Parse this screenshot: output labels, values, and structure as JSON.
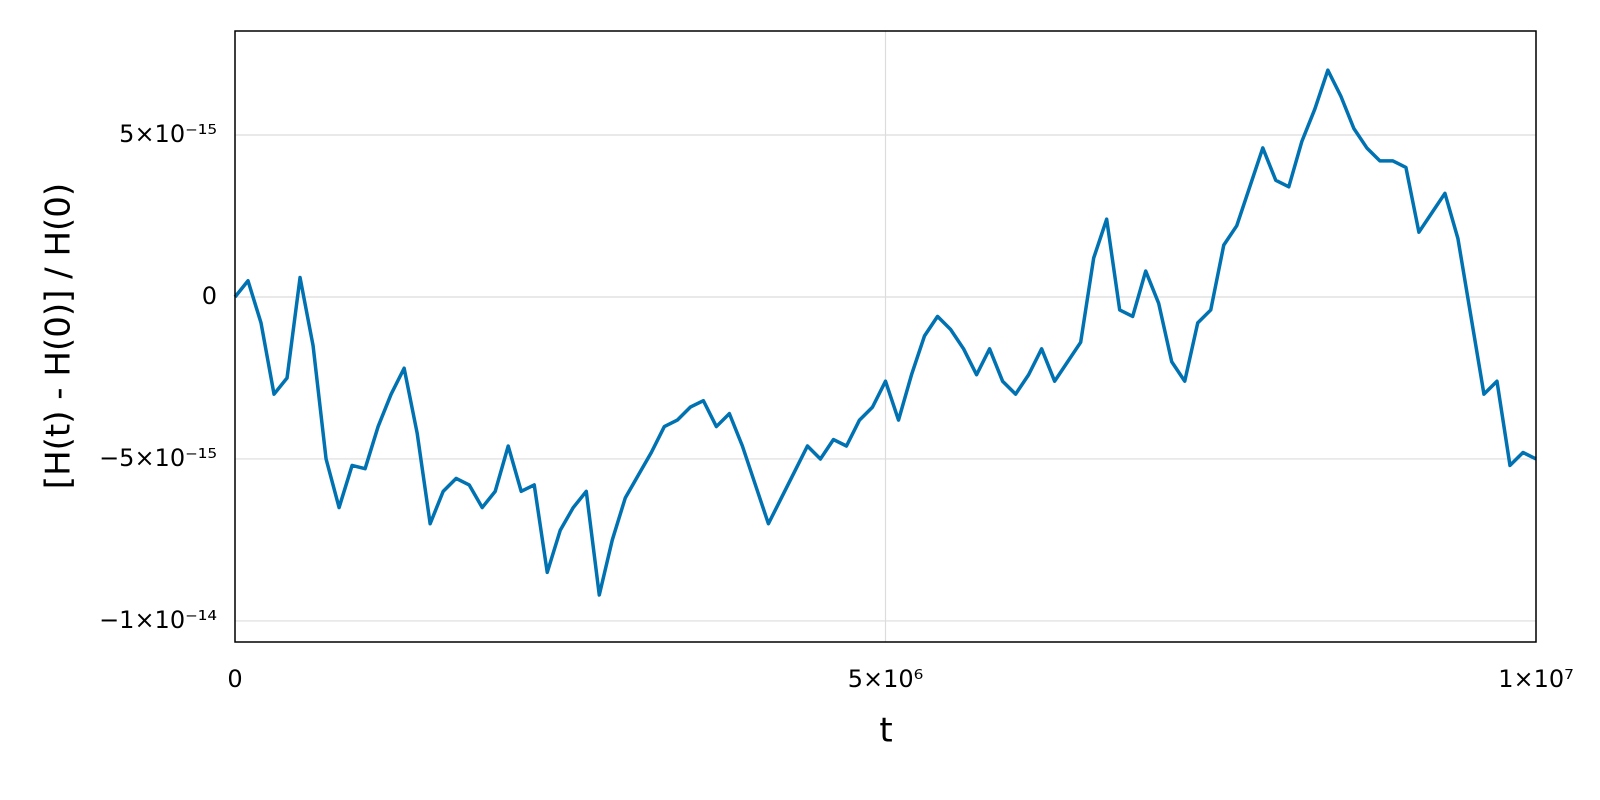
{
  "chart_data": {
    "type": "line",
    "xlabel": "t",
    "ylabel": "[H(t) - H(0)] / H(0)",
    "x": [
      0,
      100000,
      200000,
      300000,
      400000,
      500000,
      600000,
      700000,
      800000,
      900000,
      1000000,
      1100000,
      1200000,
      1300000,
      1400000,
      1500000,
      1600000,
      1700000,
      1800000,
      1900000,
      2000000,
      2100000,
      2200000,
      2300000,
      2400000,
      2500000,
      2600000,
      2700000,
      2800000,
      2900000,
      3000000,
      3100000,
      3200000,
      3300000,
      3400000,
      3500000,
      3600000,
      3700000,
      3800000,
      3900000,
      4000000,
      4100000,
      4200000,
      4300000,
      4400000,
      4500000,
      4600000,
      4700000,
      4800000,
      4900000,
      5000000,
      5100000,
      5200000,
      5300000,
      5400000,
      5500000,
      5600000,
      5700000,
      5800000,
      5900000,
      6000000,
      6100000,
      6200000,
      6300000,
      6400000,
      6500000,
      6600000,
      6700000,
      6800000,
      6900000,
      7000000,
      7100000,
      7200000,
      7300000,
      7400000,
      7500000,
      7600000,
      7700000,
      7800000,
      7900000,
      8000000,
      8100000,
      8200000,
      8300000,
      8400000,
      8500000,
      8600000,
      8700000,
      8800000,
      8900000,
      9000000,
      9100000,
      9200000,
      9300000,
      9400000,
      9500000,
      9600000,
      9700000,
      9800000,
      9900000,
      10000000
    ],
    "series": [
      {
        "color": "#0072b2",
        "values": [
          0,
          5e-16,
          -8e-16,
          -3e-15,
          -2.5e-15,
          6e-16,
          -1.5e-15,
          -5e-15,
          -6.5e-15,
          -5.2e-15,
          -5.3e-15,
          -4e-15,
          -3e-15,
          -2.2e-15,
          -4.2e-15,
          -7e-15,
          -6e-15,
          -5.6e-15,
          -5.8e-15,
          -6.5e-15,
          -6e-15,
          -4.6e-15,
          -6e-15,
          -5.8e-15,
          -8.5e-15,
          -7.2e-15,
          -6.5e-15,
          -6e-15,
          -9.2e-15,
          -7.5e-15,
          -6.2e-15,
          -5.5e-15,
          -4.8e-15,
          -4e-15,
          -3.8e-15,
          -3.4e-15,
          -3.2e-15,
          -4e-15,
          -3.6e-15,
          -4.6e-15,
          -5.8e-15,
          -7e-15,
          -6.2e-15,
          -5.4e-15,
          -4.6e-15,
          -5e-15,
          -4.4e-15,
          -4.6e-15,
          -3.8e-15,
          -3.4e-15,
          -2.6e-15,
          -3.8e-15,
          -2.4e-15,
          -1.2e-15,
          -6e-16,
          -1e-15,
          -1.6e-15,
          -2.4e-15,
          -1.6e-15,
          -2.6e-15,
          -3e-15,
          -2.4e-15,
          -1.6e-15,
          -2.6e-15,
          -2e-15,
          -1.4e-15,
          1.2e-15,
          2.4e-15,
          -4e-16,
          -6e-16,
          8e-16,
          -2e-16,
          -2e-15,
          -2.6e-15,
          -8e-16,
          -4e-16,
          1.6e-15,
          2.2e-15,
          3.4e-15,
          4.6e-15,
          3.6e-15,
          3.4e-15,
          4.8e-15,
          5.8e-15,
          7e-15,
          6.2e-15,
          5.2e-15,
          4.6e-15,
          4.2e-15,
          4.2e-15,
          4e-15,
          2e-15,
          2.6e-15,
          3.2e-15,
          1.8e-15,
          -6e-16,
          -3e-15,
          -2.6e-15,
          -5.2e-15,
          -4.8e-15,
          -5e-15
        ]
      }
    ],
    "xlim": [
      0,
      10000000
    ],
    "ylim": [
      -1.065e-14,
      8.21e-15
    ],
    "xticks": [
      0,
      {
        "value": 5000000,
        "label": "5×10⁶"
      },
      {
        "value": 10000000,
        "label": "1×10⁷"
      }
    ],
    "yticks": [
      {
        "value": -1e-14,
        "label": "−1×10⁻¹⁴"
      },
      {
        "value": -5e-15,
        "label": "−5×10⁻¹⁵"
      },
      0,
      {
        "value": 5e-15,
        "label": "5×10⁻¹⁵"
      }
    ],
    "grid": true
  }
}
